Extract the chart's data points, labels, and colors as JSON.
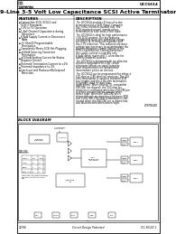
{
  "background_color": "#ffffff",
  "border_color": "#000000",
  "part_number": "UCC5614",
  "logo_top": "UNITRODE",
  "chip_title": "9-Line 3-5 Volt Low Capacitance SCSI Active Terminator",
  "features_title": "FEATURES",
  "features": [
    "Compatible SCSI, SCSI-2 and\nSCSI-3 Standards",
    "3.3V to 7V Operation",
    "1.8pF Channel Capacitance during\nDisconnect",
    "6.8μA Supply Current in Disconnect\nMode",
    "+5 Ohm/Ω Programmable\nTermination",
    "Completely Meets SCSI Hot Plugging",
    "±50mA Sourcing Connector\nTermination",
    "±500mA Sinking Current for Status\nNegation Drivers",
    "Trimmed Termination Current to ±1%",
    "Trimmed Impedance to 2%",
    "Latch-out and Flashover/Bulletproof\nProtection"
  ],
  "description_title": "DESCRIPTION",
  "desc_paras": [
    "The UCC5614 provides 9 lines of active termination for a SCSI (Small Computer Sys- tems Interface) parallel bus. The SCSI standard recom- mends active termination at both ends of the cable.",
    "The UCC5614 is ideal for high performance 3-5V SCSI systems. The key features contributing to on-line operating voltage are that it is 3V drop out regulator and the 2.7V reference. This reduced reference voltage was necessary to accommodate the lower termination current defined in the SCSI-3 specification. During disconnect the supply current is typically only 6.8μA, which makes the IC attractive for battery-powered systems.",
    "The UCC5614 is designed with an ultra low channel capacitance of 1.8pF, which eliminates effects on signal integrity from disconnection ter- mination at intermediate points on the bus.",
    "The UCC5614 can be programmed for either a 110 ohm or 2.85 ohm ter- mination. The 110 ohm termination is used for standard SCSI bus lengths and the 2.85 ohm termination is typically used in short bus applications. When driving TTL compatible DISCON/ (no slipped), the 110 ohm ter- mination is connected when the DISCON/ pin is driven low and discon- nected when driven high. When the DISCON/ pin is driven through an impedance between 80Ω and 150Ω, the 2.85 ohm termination is con- nected when the DISCON/ pin is driven low, and disconnected when driven high."
  ],
  "continued_text": "CONTINUED",
  "block_diagram_title": "BLOCK DIAGRAM",
  "footer_left": "12/94",
  "footer_center": "Circuit Design Patented",
  "footer_right": "UCC-5614Z-1"
}
